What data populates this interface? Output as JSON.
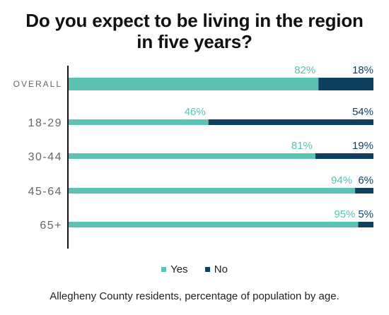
{
  "title_line1": "Do you expect to be living in the region",
  "title_line2": "in five years?",
  "colors": {
    "yes": "#5bc2b4",
    "no": "#0d3f5f"
  },
  "legend": {
    "yes": "Yes",
    "no": "No"
  },
  "footnote": "Allegheny County residents, percentage of population by age.",
  "chart_data": {
    "type": "bar",
    "orientation": "horizontal",
    "stacked": true,
    "categories": [
      "OVERALL",
      "18-29",
      "30-44",
      "45-64",
      "65+"
    ],
    "series": [
      {
        "name": "Yes",
        "values": [
          82,
          46,
          81,
          94,
          95
        ]
      },
      {
        "name": "No",
        "values": [
          18,
          54,
          19,
          6,
          5
        ]
      }
    ],
    "data_labels": {
      "Yes": [
        "82%",
        "46%",
        "81%",
        "94%",
        "95%"
      ],
      "No": [
        "18%",
        "54%",
        "19%",
        "6%",
        "5%"
      ]
    },
    "xlim": [
      0,
      100
    ],
    "grid": false,
    "legend_position": "bottom"
  }
}
